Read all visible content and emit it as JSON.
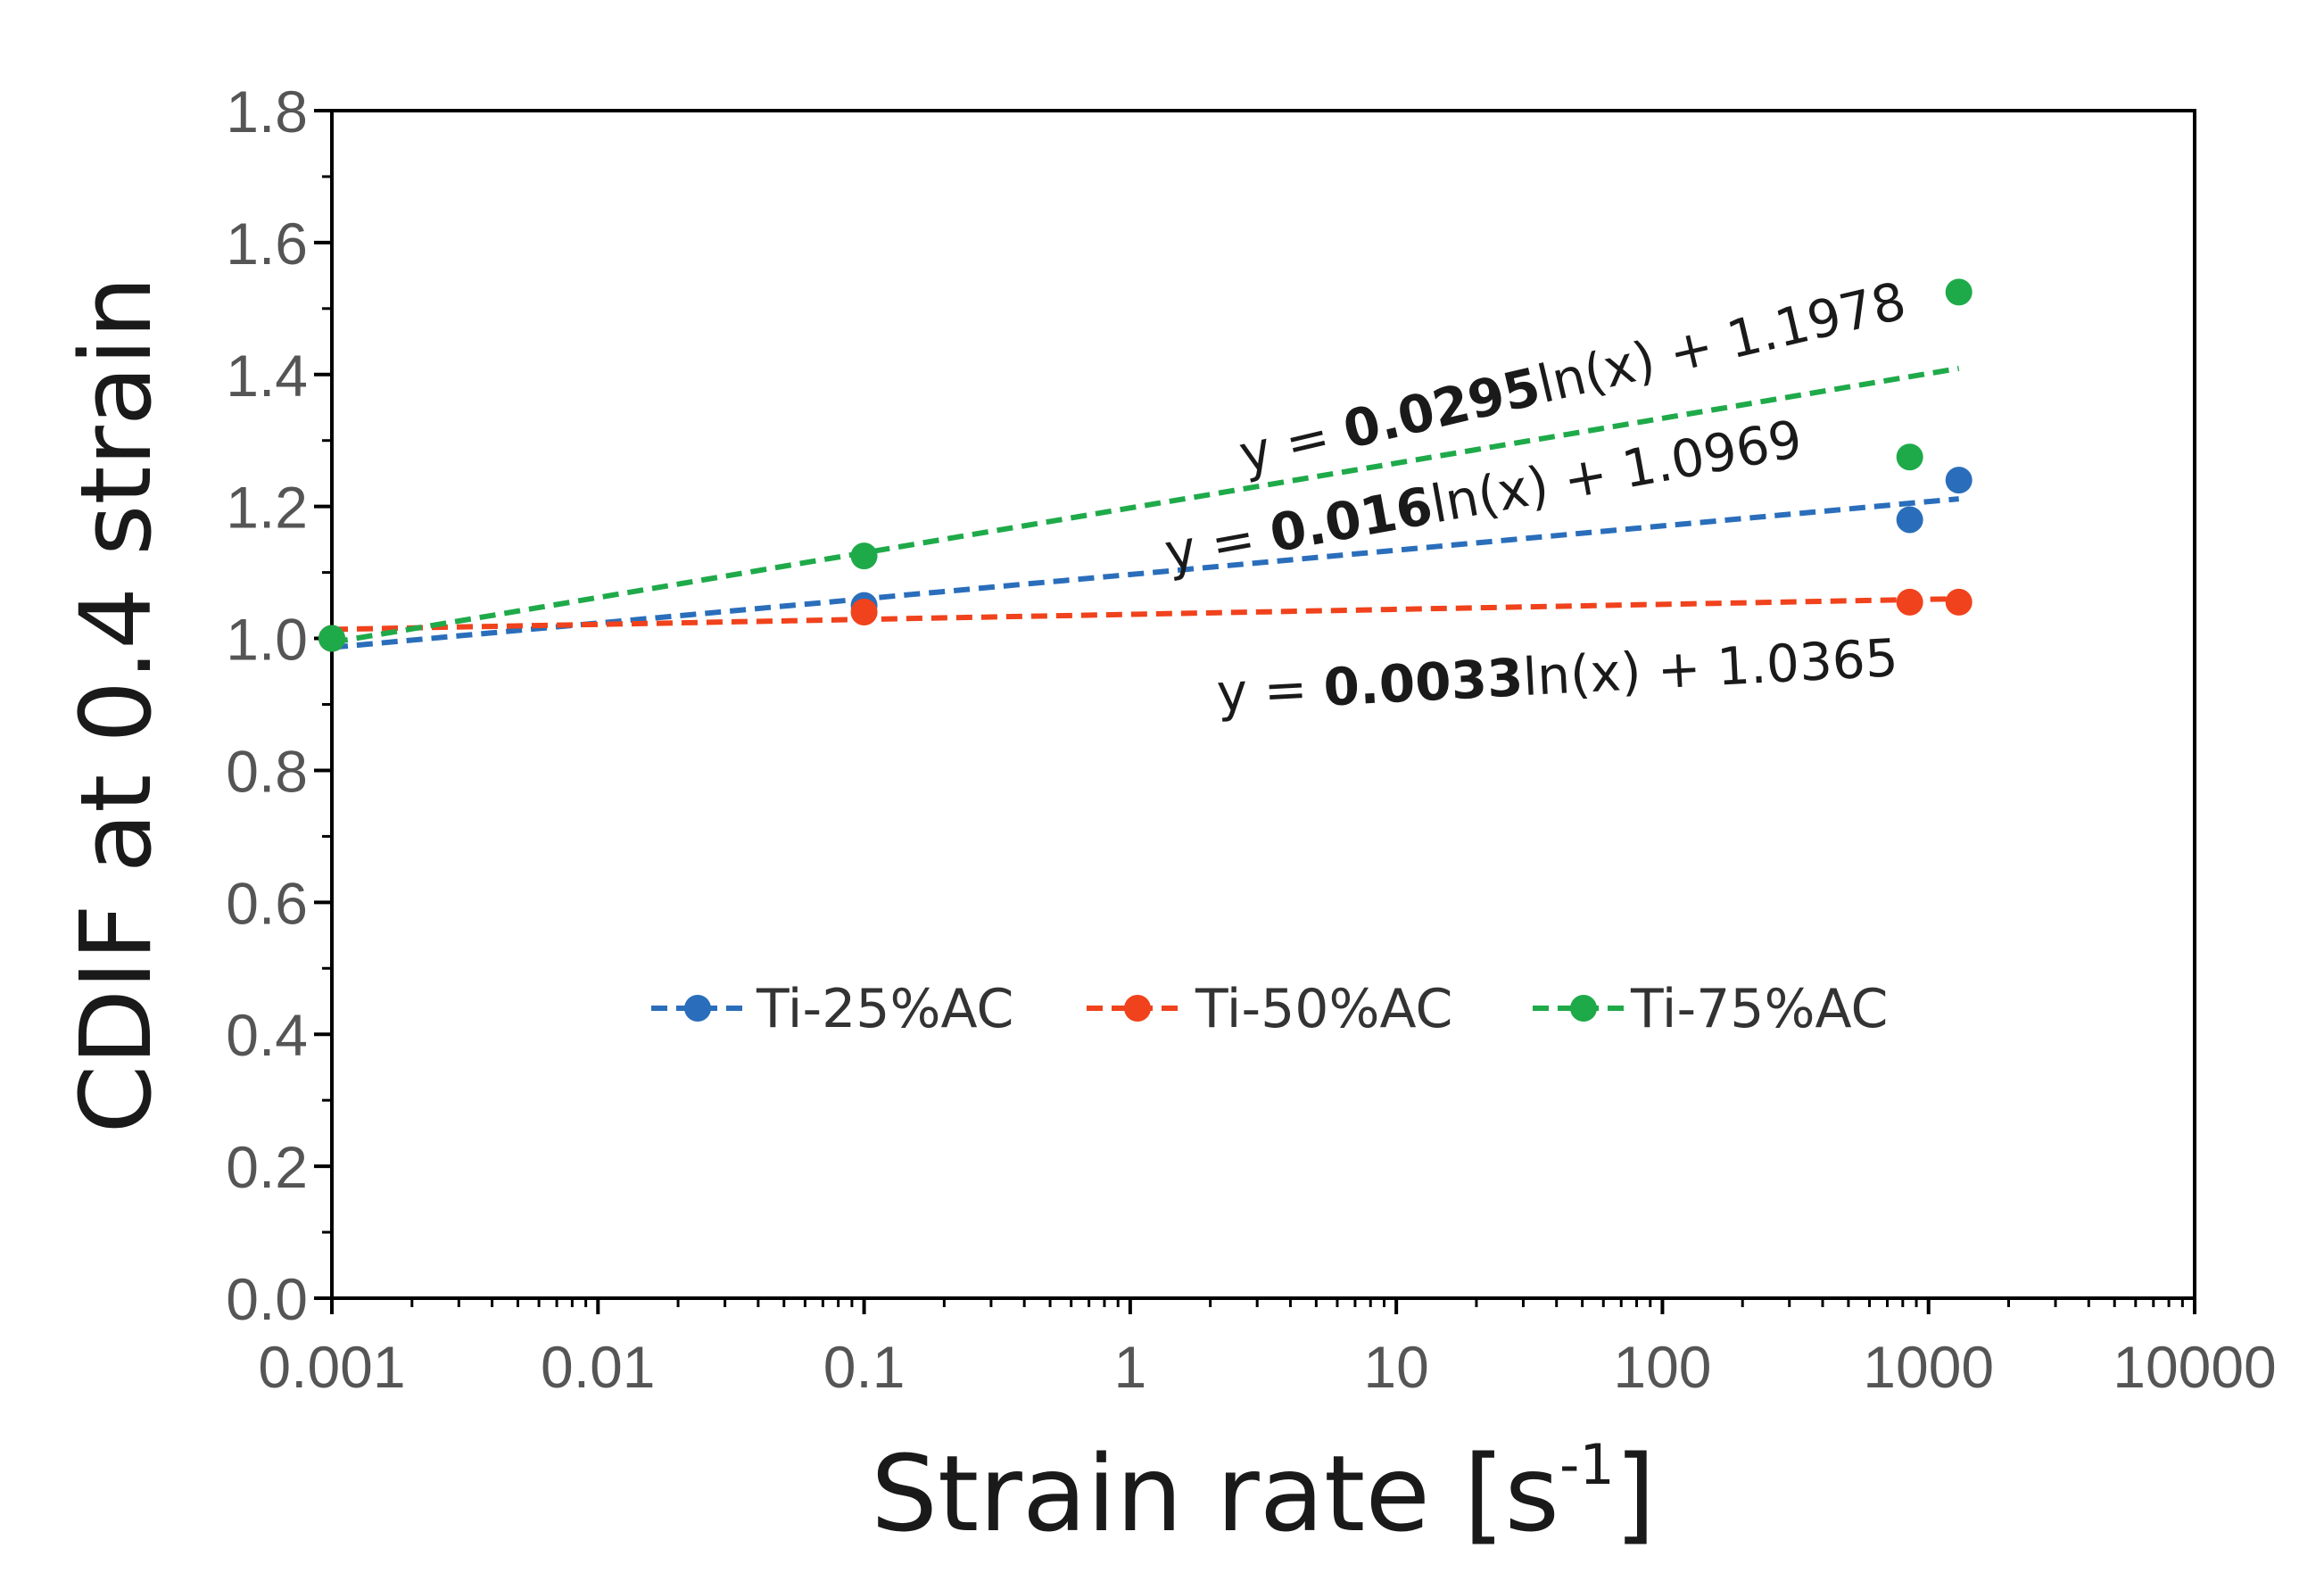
{
  "chart_data": {
    "type": "scatter",
    "xscale": "log",
    "xlim": [
      0.001,
      10000
    ],
    "ylim": [
      0.0,
      1.8
    ],
    "xlabel_main": "Strain rate [s",
    "xlabel_sup": "-1",
    "xlabel_close": "]",
    "ylabel": "CDIF at 0.4 strain",
    "x_tick_labels": [
      "0.001",
      "0.01",
      "0.1",
      "1",
      "10",
      "100",
      "1000",
      "10000"
    ],
    "x_tick_values": [
      0.001,
      0.01,
      0.1,
      1,
      10,
      100,
      1000,
      10000
    ],
    "y_tick_labels": [
      "0.0",
      "0.2",
      "0.4",
      "0.6",
      "0.8",
      "1.0",
      "1.2",
      "1.4",
      "1.6",
      "1.8"
    ],
    "y_tick_values": [
      0.0,
      0.2,
      0.4,
      0.6,
      0.8,
      1.0,
      1.2,
      1.4,
      1.6,
      1.8
    ],
    "grid": false,
    "legend_position": "bottom-center inside",
    "series": [
      {
        "name": "Ti-25%AC",
        "color": "#2a6ebb",
        "x": [
          0.001,
          0.1,
          850,
          1300
        ],
        "y": [
          1.0,
          1.05,
          1.18,
          1.24
        ],
        "fit": {
          "type": "log",
          "slope": 0.016,
          "intercept": 1.0969,
          "x_range": [
            0.001,
            1300
          ]
        },
        "equation": {
          "prefix": "y = ",
          "slope": "0.016",
          "suffix": "ln(x) + 1.0969"
        }
      },
      {
        "name": "Ti-50%AC",
        "color": "#f0421c",
        "x": [
          0.001,
          0.1,
          850,
          1300
        ],
        "y": [
          1.0,
          1.04,
          1.055,
          1.055
        ],
        "fit": {
          "type": "log",
          "slope": 0.0033,
          "intercept": 1.0365,
          "x_range": [
            0.001,
            1300
          ]
        },
        "equation": {
          "prefix": "y = ",
          "slope": "0.0033",
          "suffix": "ln(x) + 1.0365"
        }
      },
      {
        "name": "Ti-75%AC",
        "color": "#1faa4a",
        "x": [
          0.001,
          0.1,
          850,
          1300
        ],
        "y": [
          1.0,
          1.125,
          1.275,
          1.525
        ],
        "fit": {
          "type": "log",
          "slope": 0.0295,
          "intercept": 1.1978,
          "x_range": [
            0.001,
            1300
          ]
        },
        "equation": {
          "prefix": "y = ",
          "slope": "0.0295",
          "suffix": "ln(x) + 1.1978"
        }
      }
    ]
  }
}
